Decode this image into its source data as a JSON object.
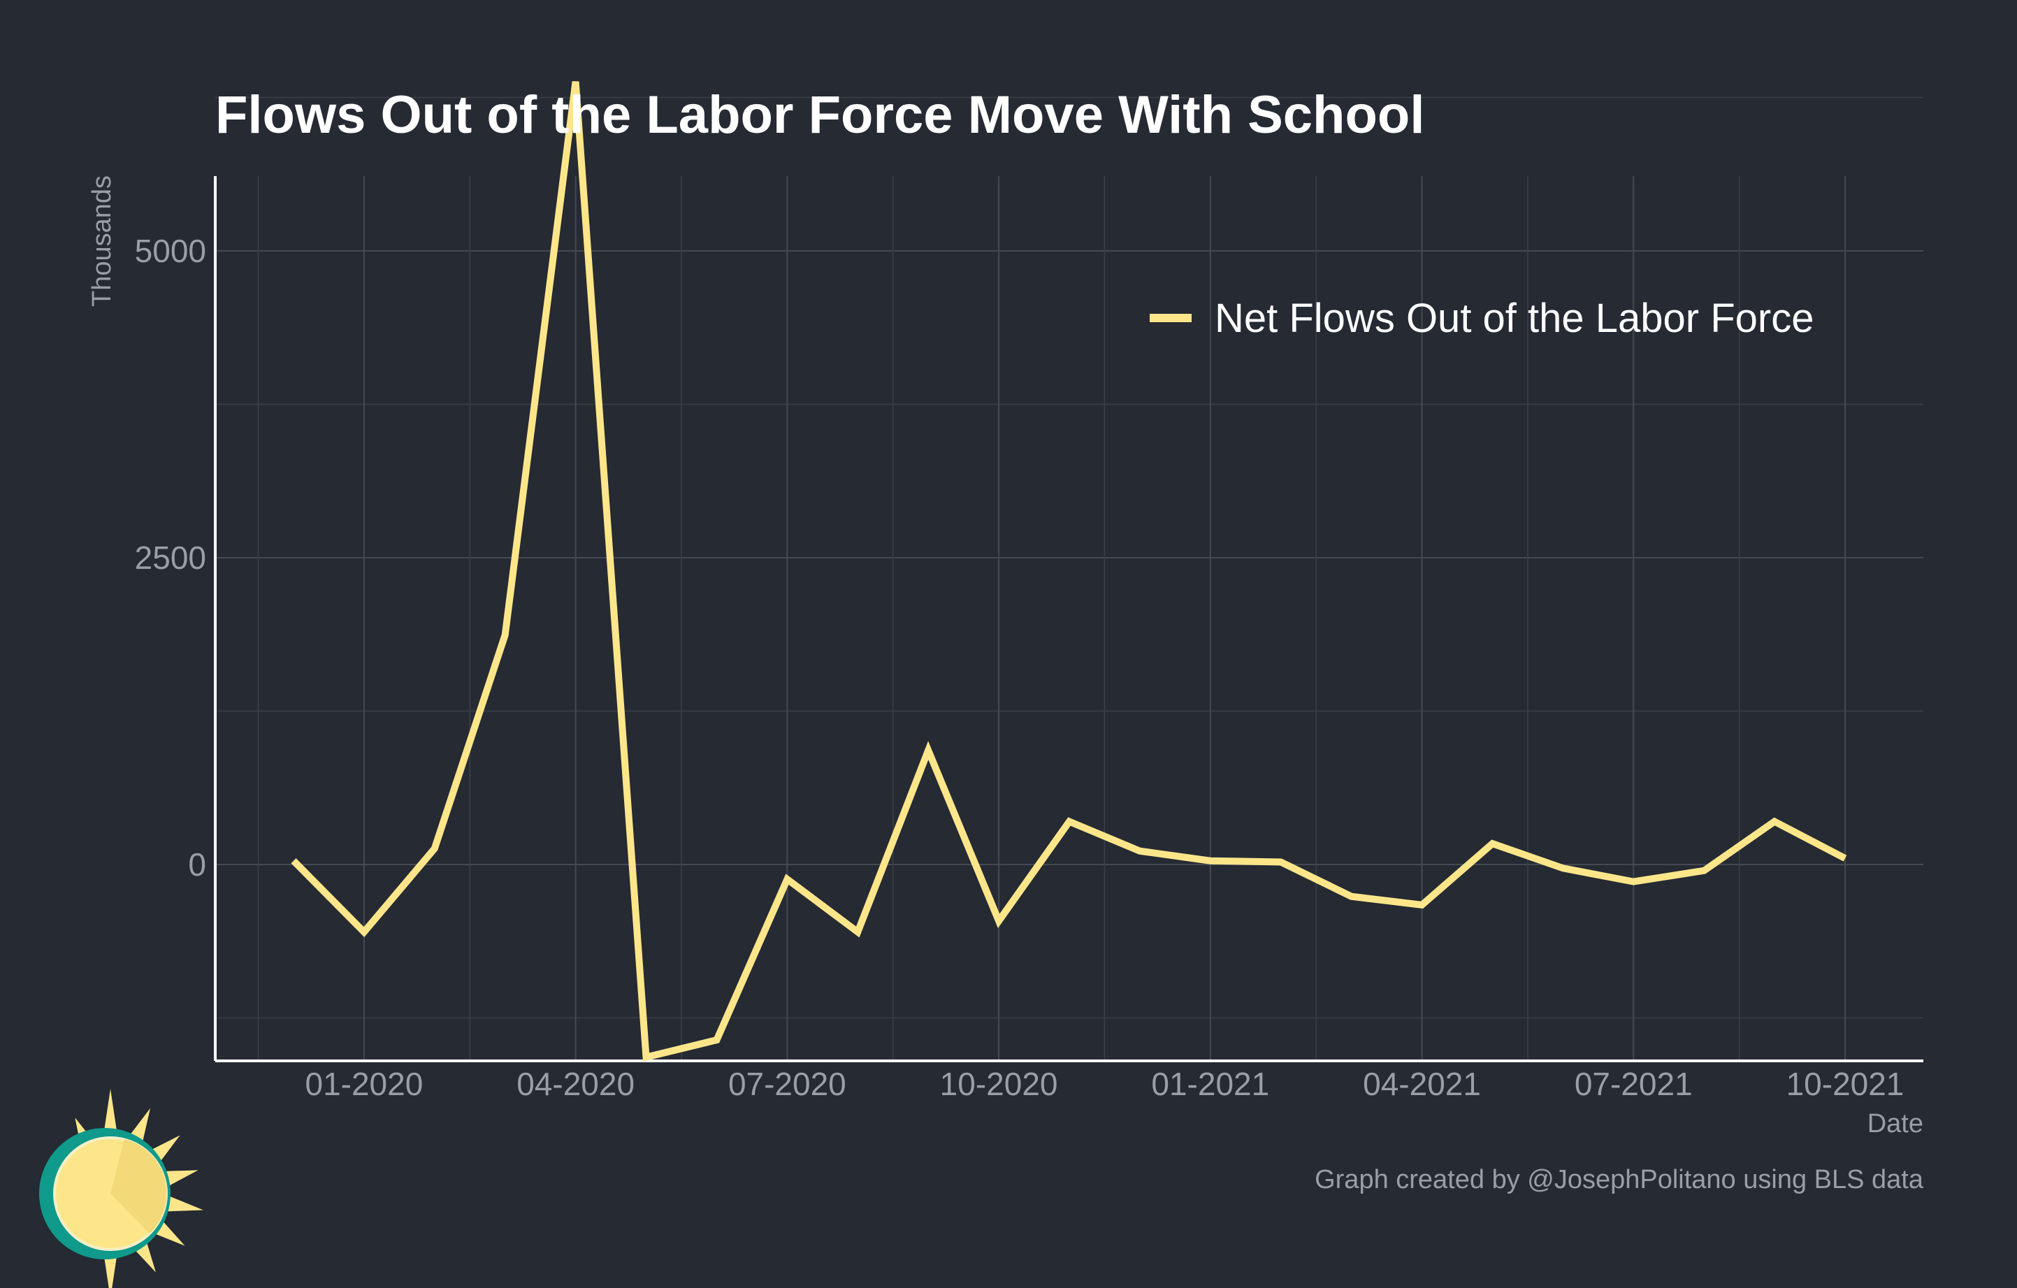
{
  "chart_data": {
    "type": "line",
    "title": "Flows Out of the Labor Force Move With School",
    "xlabel": "Date",
    "ylabel": "Thousands",
    "caption": "Graph created by @JosephPolitano using BLS data",
    "x": [
      "2019-12",
      "2020-01",
      "2020-02",
      "2020-03",
      "2020-04",
      "2020-05",
      "2020-06",
      "2020-07",
      "2020-08",
      "2020-09",
      "2020-10",
      "2020-11",
      "2020-12",
      "2021-01",
      "2021-02",
      "2021-03",
      "2021-04",
      "2021-05",
      "2021-06",
      "2021-07",
      "2021-08",
      "2021-09",
      "2021-10"
    ],
    "x_ticks": [
      "01-2020",
      "04-2020",
      "07-2020",
      "10-2020",
      "01-2021",
      "04-2021",
      "07-2021",
      "10-2021"
    ],
    "y_ticks": [
      0,
      2500,
      5000
    ],
    "ylim": [
      -2000,
      7000
    ],
    "grid": true,
    "legend_position": "top-right",
    "series": [
      {
        "name": "Net Flows Out of the Labor Force",
        "color": "#fde68a",
        "values": [
          30,
          -550,
          130,
          1870,
          6380,
          -1570,
          -1430,
          -120,
          -550,
          930,
          -460,
          350,
          110,
          30,
          20,
          -260,
          -330,
          170,
          -30,
          -140,
          -50,
          350,
          50
        ]
      }
    ]
  },
  "logo": {
    "icon": "sun-icon",
    "colors": {
      "ring": "#0f9a8b",
      "face": "#fde68a",
      "rays": "#fde68a"
    }
  }
}
